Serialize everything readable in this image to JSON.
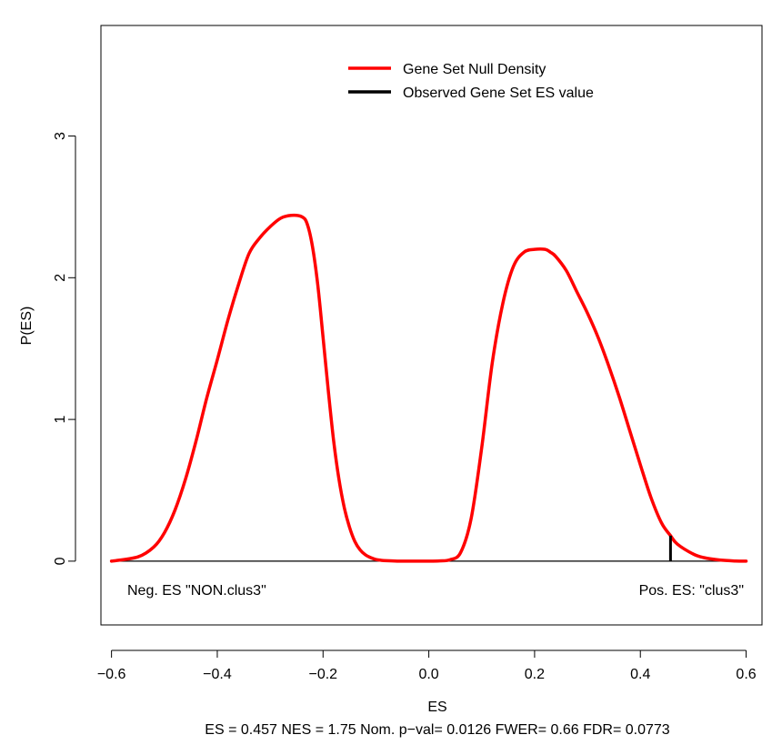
{
  "chart_data": {
    "type": "line",
    "xlabel": "ES",
    "ylabel": "P(ES)",
    "subtitle": "ES = 0.457  NES = 1.75 Nom. p−val= 0.0126 FWER= 0.66 FDR= 0.0773",
    "xlim": [
      -0.62,
      0.63
    ],
    "ylim": [
      -0.45,
      3.78
    ],
    "x_ticks": [
      -0.6,
      -0.4,
      -0.2,
      0.0,
      0.2,
      0.4,
      0.6
    ],
    "x_tick_labels": [
      "−0.6",
      "−0.4",
      "−0.2",
      "0.0",
      "0.2",
      "0.4",
      "0.6"
    ],
    "y_ticks": [
      0,
      1,
      2,
      3
    ],
    "y_tick_labels": [
      "0",
      "1",
      "2",
      "3"
    ],
    "legend": {
      "placement": "top-center",
      "entries": [
        {
          "label": "Gene Set Null Density",
          "color": "#ff0000"
        },
        {
          "label": "Observed Gene Set ES value",
          "color": "#000000"
        }
      ]
    },
    "annotations": {
      "neg_label": "Neg. ES \"NON.clus3\"",
      "pos_label": "Pos. ES: \"clus3\""
    },
    "series": [
      {
        "color": "#ff0000",
        "x": [
          -0.6,
          -0.55,
          -0.52,
          -0.5,
          -0.48,
          -0.46,
          -0.44,
          -0.42,
          -0.4,
          -0.38,
          -0.36,
          -0.34,
          -0.32,
          -0.3,
          -0.28,
          -0.26,
          -0.24,
          -0.23,
          -0.22,
          -0.21,
          -0.2,
          -0.19,
          -0.18,
          -0.17,
          -0.16,
          -0.15,
          -0.14,
          -0.13,
          -0.12,
          -0.11,
          -0.1,
          -0.09,
          -0.08,
          -0.06,
          -0.04,
          -0.02,
          0.0,
          0.02,
          0.04,
          0.06,
          0.08,
          0.1,
          0.12,
          0.14,
          0.16,
          0.18,
          0.2,
          0.22,
          0.23,
          0.24,
          0.26,
          0.28,
          0.3,
          0.32,
          0.34,
          0.36,
          0.38,
          0.4,
          0.42,
          0.44,
          0.457,
          0.47,
          0.5,
          0.52,
          0.55,
          0.58,
          0.6
        ],
        "y": [
          0.0,
          0.03,
          0.1,
          0.2,
          0.36,
          0.58,
          0.85,
          1.15,
          1.42,
          1.7,
          1.95,
          2.17,
          2.28,
          2.36,
          2.42,
          2.44,
          2.43,
          2.38,
          2.22,
          1.95,
          1.58,
          1.2,
          0.85,
          0.58,
          0.38,
          0.24,
          0.14,
          0.08,
          0.045,
          0.025,
          0.012,
          0.006,
          0.003,
          0.0,
          0.0,
          0.0,
          0.0,
          0.002,
          0.01,
          0.06,
          0.3,
          0.8,
          1.4,
          1.82,
          2.08,
          2.18,
          2.2,
          2.2,
          2.18,
          2.15,
          2.05,
          1.9,
          1.75,
          1.58,
          1.38,
          1.16,
          0.92,
          0.68,
          0.45,
          0.27,
          0.18,
          0.12,
          0.05,
          0.025,
          0.008,
          0.001,
          0.0
        ]
      }
    ],
    "observed_es": {
      "x": 0.457,
      "y": 0.18,
      "color": "#000000"
    }
  }
}
